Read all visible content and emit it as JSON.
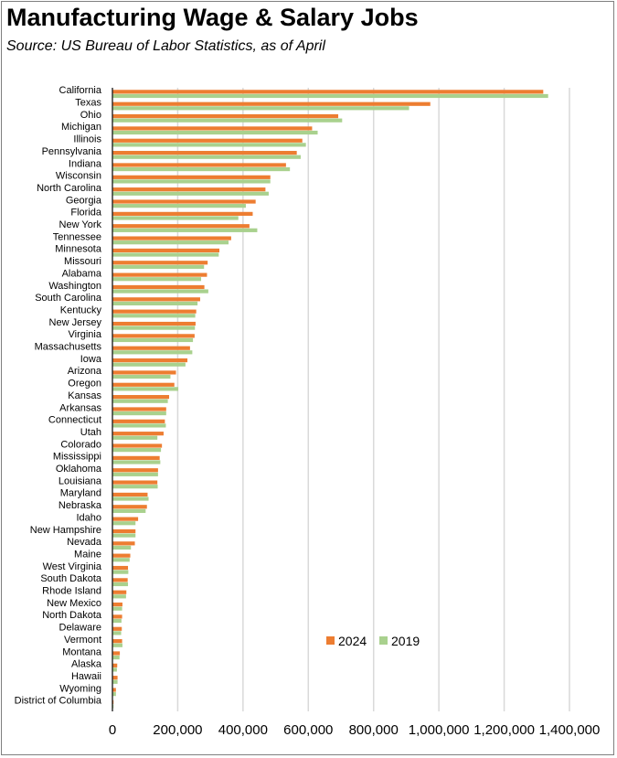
{
  "chart_data": {
    "type": "bar",
    "orientation": "horizontal",
    "title": "Manufacturing Wage & Salary Jobs",
    "subtitle": "Source:  US Bureau of Labor Statistics, as of April",
    "categories": [
      "California",
      "Texas",
      "Ohio",
      "Michigan",
      "Illinois",
      "Pennsylvania",
      "Indiana",
      "Wisconsin",
      "North Carolina",
      "Georgia",
      "Florida",
      "New York",
      "Tennessee",
      "Minnesota",
      "Missouri",
      "Alabama",
      "Washington",
      "South Carolina",
      "Kentucky",
      "New Jersey",
      "Virginia",
      "Massachusetts",
      "Iowa",
      "Arizona",
      "Oregon",
      "Kansas",
      "Arkansas",
      "Connecticut",
      "Utah",
      "Colorado",
      "Mississippi",
      "Oklahoma",
      "Louisiana",
      "Maryland",
      "Nebraska",
      "Idaho",
      "New Hampshire",
      "Nevada",
      "Maine",
      "West Virginia",
      "South Dakota",
      "Rhode Island",
      "New Mexico",
      "North Dakota",
      "Delaware",
      "Vermont",
      "Montana",
      "Alaska",
      "Hawaii",
      "Wyoming",
      "District of Columbia"
    ],
    "series": [
      {
        "name": "2024",
        "color": "#ed7d31",
        "values": [
          1318000,
          972000,
          690000,
          610000,
          580000,
          563000,
          530000,
          482000,
          467000,
          437000,
          428000,
          418000,
          362000,
          326000,
          290000,
          288000,
          280000,
          267000,
          255000,
          253000,
          250000,
          236000,
          228000,
          193000,
          188000,
          172000,
          163000,
          159000,
          155000,
          150000,
          143000,
          138000,
          136000,
          106000,
          104000,
          77000,
          69000,
          67000,
          53000,
          46000,
          45000,
          41000,
          29000,
          28000,
          27000,
          28000,
          21000,
          13000,
          14000,
          9000,
          1500
        ]
      },
      {
        "name": "2019",
        "color": "#a9d18e",
        "values": [
          1333000,
          907000,
          702000,
          627000,
          591000,
          575000,
          542000,
          482000,
          477000,
          407000,
          384000,
          442000,
          354000,
          324000,
          279000,
          270000,
          292000,
          259000,
          252000,
          251000,
          245000,
          243000,
          222000,
          176000,
          200000,
          168000,
          163000,
          162000,
          136000,
          147000,
          145000,
          138000,
          137000,
          109000,
          100000,
          69000,
          69000,
          55000,
          51000,
          47000,
          46000,
          40000,
          28000,
          26000,
          25000,
          29000,
          20000,
          12000,
          14000,
          9000,
          1000
        ]
      }
    ],
    "xlim": [
      0,
      1400000
    ],
    "xticks": [
      "0",
      "200,000",
      "400,000",
      "600,000",
      "800,000",
      "1,000,000",
      "1,200,000",
      "1,400,000"
    ],
    "grid": true,
    "legend": [
      "2024",
      "2019"
    ],
    "legend_position": "lower-right"
  }
}
